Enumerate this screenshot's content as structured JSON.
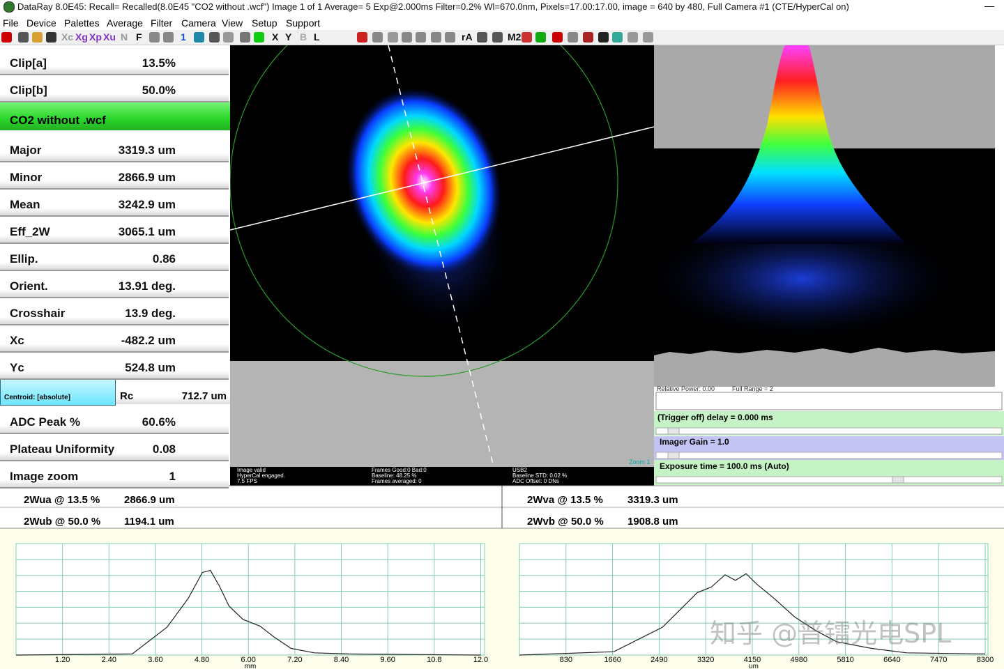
{
  "title_bar": "DataRay 8.0E45: Recall= Recalled(8.0E45 \"CO2 without .wcf\")  Image 1 of 1    Average= 5  Exp@2.000ms Filter=0.2%     Wl=670.0nm, Pixels=17.00:17.00, image = 640 by 480, Full   Camera #1  (CTE/HyperCal on)",
  "menu": [
    "File",
    "Device",
    "Palettes",
    "Average",
    "Filter",
    "Camera",
    "View",
    "Setup",
    "Support"
  ],
  "toolbar": [
    "Xc",
    "Xg",
    "Xp",
    "Xu",
    "N",
    "F",
    "1",
    "X",
    "Y",
    "B",
    "L",
    "rA",
    "M2"
  ],
  "file_name": "CO2 without .wcf",
  "results": [
    {
      "label": "Clip[a]",
      "value": "13.5%"
    },
    {
      "label": "Clip[b]",
      "value": "50.0%"
    },
    {
      "label": "Major",
      "value": "3319.3 um"
    },
    {
      "label": "Minor",
      "value": "2866.9 um"
    },
    {
      "label": "Mean",
      "value": "3242.9 um"
    },
    {
      "label": "Eff_2W",
      "value": "3065.1 um"
    },
    {
      "label": "Ellip.",
      "value": "0.86"
    },
    {
      "label": "Orient.",
      "value": "13.91 deg."
    },
    {
      "label": "Crosshair",
      "value": "13.9 deg."
    },
    {
      "label": "Xc",
      "value": "-482.2 um"
    },
    {
      "label": "Yc",
      "value": "524.8 um"
    },
    {
      "label": "ADC Peak %",
      "value": "60.6%"
    },
    {
      "label": "Plateau Uniformity",
      "value": "0.08"
    },
    {
      "label": "Image zoom",
      "value": "1"
    }
  ],
  "centroid": {
    "label": "Centroid: [absolute]",
    "name": "Rc",
    "value": "712.7 um"
  },
  "image_status": [
    [
      "Image valid",
      "HyperCal engaged.",
      "7.5 FPS"
    ],
    [
      "Frames Good:0 Bad:0",
      "Baseline: 48.25 %",
      "Frames averaged: 0"
    ],
    [
      "USB2",
      "Baseline STD: 0.02 %",
      "ADC Offset: 0 DNs"
    ]
  ],
  "zoom_note": "Zoom 1",
  "controls": {
    "relative_power": "Relative Power: 0.00",
    "full_range": "Full Range = 2",
    "trigger": "(Trigger off) delay = 0.000 ms",
    "gain": "Imager Gain = 1.0",
    "exposure": "Exposure time = 100.0 ms (Auto)"
  },
  "widths": [
    [
      "2Wua @ 13.5 %",
      "2866.9 um",
      "2Wva @ 13.5 %",
      "3319.3 um"
    ],
    [
      "2Wub @ 50.0 %",
      "1194.1 um",
      "2Wvb @ 50.0 %",
      "1908.8 um"
    ]
  ],
  "watermark": "知乎 @普镭光电SPL",
  "chart_data": [
    {
      "type": "line",
      "x_label": "mm",
      "color": "#222222",
      "grid_color": "#7fcfae",
      "x": [
        0,
        3.0,
        3.9,
        4.45,
        4.81,
        5.02,
        5.25,
        5.5,
        5.86,
        6.3,
        6.67,
        7.1,
        7.7,
        8.6,
        12.0
      ],
      "values": [
        0,
        1,
        25,
        51,
        74,
        76,
        62,
        44,
        32,
        26,
        16,
        6,
        2,
        1,
        0
      ],
      "xlim": [
        0,
        12.1
      ],
      "ylim": [
        0,
        100
      ],
      "xticks": [
        {
          "value": 1.2,
          "label": "1.20"
        },
        {
          "value": 2.4,
          "label": "2.40"
        },
        {
          "value": 3.6,
          "label": "3.60"
        },
        {
          "value": 4.8,
          "label": "4.80"
        },
        {
          "value": 6.0,
          "label": "6.00"
        },
        {
          "value": 7.2,
          "label": "7.20"
        },
        {
          "value": 8.4,
          "label": "8.40"
        },
        {
          "value": 9.6,
          "label": "9.60"
        },
        {
          "value": 10.8,
          "label": "10.8"
        },
        {
          "value": 12.0,
          "label": "12.0"
        }
      ]
    },
    {
      "type": "line",
      "x_label": "um",
      "color": "#222222",
      "grid_color": "#7fcfae",
      "x": [
        0,
        1680,
        2550,
        3170,
        3420,
        3665,
        3850,
        4040,
        4220,
        4535,
        4910,
        5280,
        5650,
        6270,
        6900,
        8300
      ],
      "values": [
        0,
        3,
        25,
        56,
        61,
        72,
        67,
        73,
        64,
        51,
        34,
        22,
        12,
        6,
        2,
        1
      ],
      "xlim": [
        0,
        8350
      ],
      "ylim": [
        0,
        100
      ],
      "xticks": [
        830,
        1660,
        2490,
        3320,
        4150,
        4980,
        5810,
        6640,
        7470,
        8300
      ]
    }
  ]
}
